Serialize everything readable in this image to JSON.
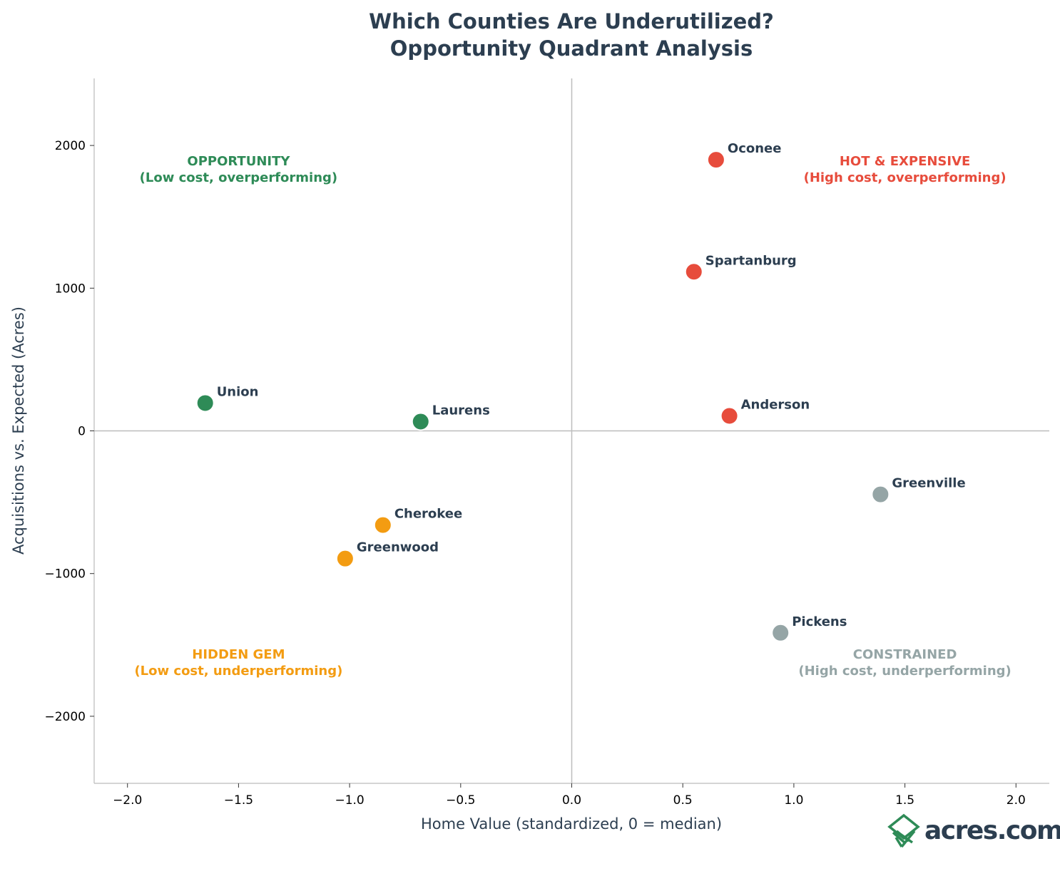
{
  "chart_data": {
    "type": "scatter",
    "title_line1": "Which Counties Are Underutilized?",
    "title_line2": "Opportunity Quadrant Analysis",
    "xlabel": "Home Value (standardized, 0 = median)",
    "ylabel": "Acquisitions vs. Expected (Acres)",
    "xlim": [
      -2.15,
      2.15
    ],
    "ylim": [
      -2470,
      2470
    ],
    "xticks": [
      -2.0,
      -1.5,
      -1.0,
      -0.5,
      0.0,
      0.5,
      1.0,
      1.5,
      2.0
    ],
    "xtick_labels": [
      "−2.0",
      "−1.5",
      "−1.0",
      "−0.5",
      "0.0",
      "0.5",
      "1.0",
      "1.5",
      "2.0"
    ],
    "yticks": [
      2000,
      1000,
      0,
      -1000,
      -2000
    ],
    "ytick_labels": [
      "2000",
      "1000",
      "0",
      "−1000",
      "−2000"
    ],
    "grid": false,
    "reference_lines": {
      "x": 0,
      "y": 0
    },
    "points": [
      {
        "label": "Oconee",
        "x": 0.65,
        "y": 1900,
        "quadrant": "hot"
      },
      {
        "label": "Spartanburg",
        "x": 0.55,
        "y": 1115,
        "quadrant": "hot"
      },
      {
        "label": "Anderson",
        "x": 0.71,
        "y": 105,
        "quadrant": "hot"
      },
      {
        "label": "Greenville",
        "x": 1.39,
        "y": -445,
        "quadrant": "constrained"
      },
      {
        "label": "Pickens",
        "x": 0.94,
        "y": -1415,
        "quadrant": "constrained"
      },
      {
        "label": "Union",
        "x": -1.65,
        "y": 195,
        "quadrant": "opportunity"
      },
      {
        "label": "Laurens",
        "x": -0.68,
        "y": 65,
        "quadrant": "opportunity"
      },
      {
        "label": "Cherokee",
        "x": -0.85,
        "y": -660,
        "quadrant": "hidden"
      },
      {
        "label": "Greenwood",
        "x": -1.02,
        "y": -895,
        "quadrant": "hidden"
      }
    ],
    "quadrants": {
      "opportunity": {
        "title": "OPPORTUNITY",
        "subtitle": "(Low cost, overperforming)",
        "color": "#2e8b57",
        "x": -1.5,
        "y": 1860
      },
      "hot": {
        "title": "HOT & EXPENSIVE",
        "subtitle": "(High cost, overperforming)",
        "color": "#e74c3c",
        "x": 1.5,
        "y": 1860
      },
      "hidden": {
        "title": "HIDDEN GEM",
        "subtitle": "(Low cost, underperforming)",
        "color": "#f39c12",
        "x": -1.5,
        "y": -1595
      },
      "constrained": {
        "title": "CONSTRAINED",
        "subtitle": "(High cost, underperforming)",
        "color": "#95a5a6",
        "x": 1.5,
        "y": -1595
      }
    }
  },
  "logo": {
    "text": "acres.com",
    "color": "#2c3e50",
    "mark_color": "#2e8b57"
  }
}
